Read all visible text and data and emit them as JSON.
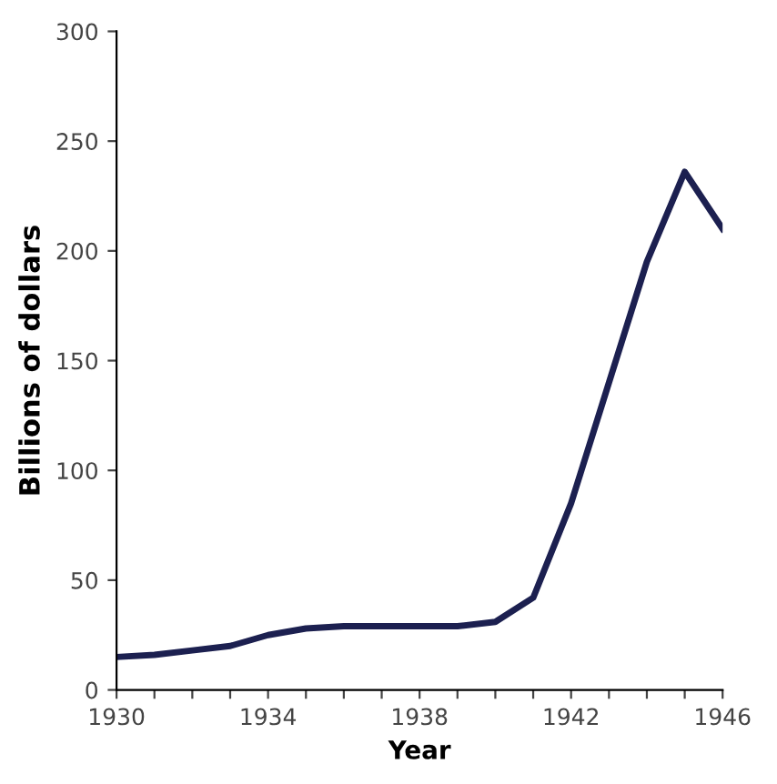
{
  "chart_data": {
    "type": "line",
    "xlabel": "Year",
    "ylabel": "Billions of dollars",
    "x": [
      1930,
      1931,
      1932,
      1933,
      1934,
      1935,
      1936,
      1937,
      1938,
      1939,
      1940,
      1941,
      1942,
      1943,
      1944,
      1945,
      1946
    ],
    "series": [
      {
        "color": "#1c2050",
        "values": [
          15,
          16,
          18,
          20,
          25,
          28,
          29,
          29,
          29,
          29,
          31,
          42,
          85,
          140,
          195,
          236,
          210
        ]
      }
    ],
    "xlim": [
      1930,
      1946
    ],
    "xticks": [
      1930,
      {
        "value": 1931,
        "label": null
      },
      {
        "value": 1932,
        "label": null
      },
      {
        "value": 1933,
        "label": null
      },
      1934,
      {
        "value": 1935,
        "label": null
      },
      {
        "value": 1936,
        "label": null
      },
      {
        "value": 1937,
        "label": null
      },
      1938,
      {
        "value": 1939,
        "label": null
      },
      {
        "value": 1940,
        "label": null
      },
      {
        "value": 1941,
        "label": null
      },
      1942,
      {
        "value": 1943,
        "label": null
      },
      {
        "value": 1944,
        "label": null
      },
      {
        "value": 1945,
        "label": null
      },
      1946
    ],
    "ylim": [
      0,
      300
    ],
    "yticks": [
      0,
      50,
      100,
      150,
      200,
      250,
      300
    ],
    "grid": false,
    "legend": false,
    "marker": "none",
    "line_style": "solid"
  }
}
